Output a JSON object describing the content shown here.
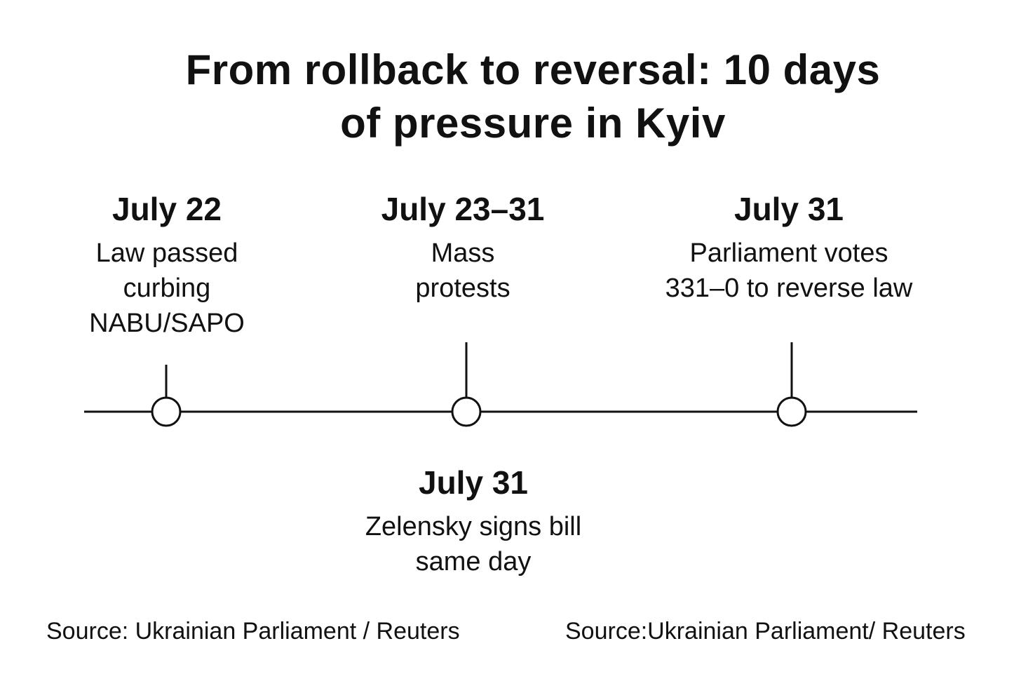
{
  "title": {
    "line1": "From rollback to reversal: 10 days",
    "line2": "of pressure in Kyiv"
  },
  "events": [
    {
      "date": "July 22",
      "lines": [
        "Law passed",
        "curbing",
        "NABU/SAPO"
      ]
    },
    {
      "date": "July 23–31",
      "lines": [
        "Mass",
        "protests"
      ]
    },
    {
      "date": "July 31",
      "lines": [
        "Parliament votes",
        "331–0 to reverse law"
      ]
    },
    {
      "date": "July 31",
      "lines": [
        "Zelensky signs bill",
        "same day"
      ]
    }
  ],
  "sources": {
    "left": "Source: Ukrainian Parliament / Reuters",
    "right": "Source:Ukrainian Parliament/ Reuters"
  },
  "colors": {
    "ink": "#111111",
    "background": "#ffffff"
  }
}
